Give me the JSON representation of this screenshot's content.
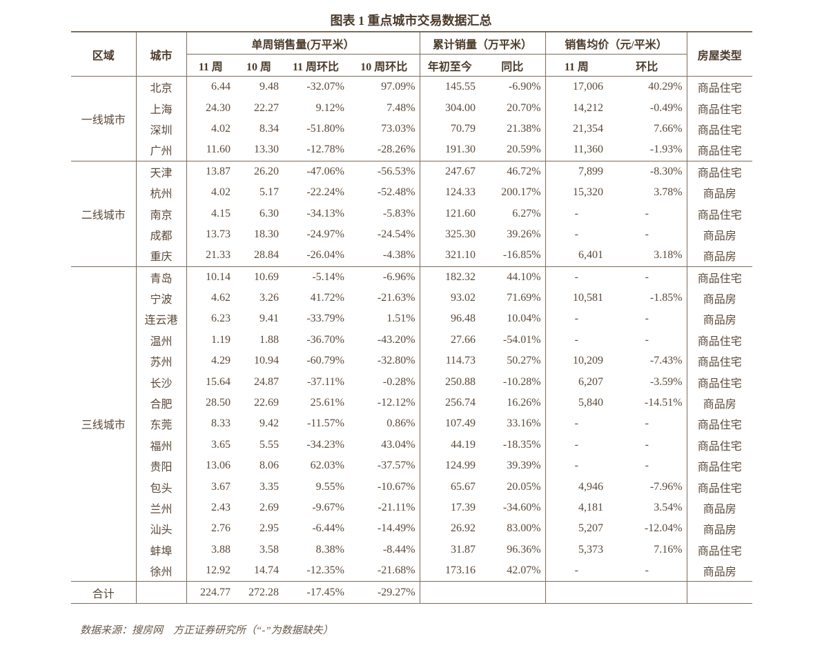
{
  "title": "图表 1 重点城市交易数据汇总",
  "header": {
    "region": "区域",
    "city": "城市",
    "weekly": "单周销售量(万平米）",
    "cumulative": "累计销量（万平米）",
    "price": "销售均价（元/平米）",
    "type": "房屋类型",
    "sub": [
      "11 周",
      "10 周",
      "11 周环比",
      "10 周环比",
      "年初至今",
      "同比",
      "11 周",
      "环比"
    ]
  },
  "groups": [
    {
      "region": "一线城市",
      "rows": [
        [
          "北京",
          "6.44",
          "9.48",
          "-32.07%",
          "97.09%",
          "145.55",
          "-6.90%",
          "17,006",
          "40.29%",
          "商品住宅"
        ],
        [
          "上海",
          "24.30",
          "22.27",
          "9.12%",
          "7.48%",
          "304.00",
          "20.70%",
          "14,212",
          "-0.49%",
          "商品住宅"
        ],
        [
          "深圳",
          "4.02",
          "8.34",
          "-51.80%",
          "73.03%",
          "70.79",
          "21.38%",
          "21,354",
          "7.66%",
          "商品住宅"
        ],
        [
          "广州",
          "11.60",
          "13.30",
          "-12.78%",
          "-28.26%",
          "191.30",
          "20.59%",
          "11,360",
          "-1.93%",
          "商品住宅"
        ]
      ]
    },
    {
      "region": "二线城市",
      "rows": [
        [
          "天津",
          "13.87",
          "26.20",
          "-47.06%",
          "-56.53%",
          "247.67",
          "46.72%",
          "7,899",
          "-8.30%",
          "商品住宅"
        ],
        [
          "杭州",
          "4.02",
          "5.17",
          "-22.24%",
          "-52.48%",
          "124.33",
          "200.17%",
          "15,320",
          "3.78%",
          "商品房"
        ],
        [
          "南京",
          "4.15",
          "6.30",
          "-34.13%",
          "-5.83%",
          "121.60",
          "6.27%",
          "-",
          "-",
          "商品住宅"
        ],
        [
          "成都",
          "13.73",
          "18.30",
          "-24.97%",
          "-24.54%",
          "325.30",
          "39.26%",
          "-",
          "-",
          "商品房"
        ],
        [
          "重庆",
          "21.33",
          "28.84",
          "-26.04%",
          "-4.38%",
          "321.10",
          "-16.85%",
          "6,401",
          "3.18%",
          "商品房"
        ]
      ]
    },
    {
      "region": "三线城市",
      "rows": [
        [
          "青岛",
          "10.14",
          "10.69",
          "-5.14%",
          "-6.96%",
          "182.32",
          "44.10%",
          "-",
          "-",
          "商品住宅"
        ],
        [
          "宁波",
          "4.62",
          "3.26",
          "41.72%",
          "-21.63%",
          "93.02",
          "71.69%",
          "10,581",
          "-1.85%",
          "商品房"
        ],
        [
          "连云港",
          "6.23",
          "9.41",
          "-33.79%",
          "1.51%",
          "96.48",
          "10.04%",
          "-",
          "-",
          "商品房"
        ],
        [
          "温州",
          "1.19",
          "1.88",
          "-36.70%",
          "-43.20%",
          "27.66",
          "-54.01%",
          "-",
          "-",
          "商品住宅"
        ],
        [
          "苏州",
          "4.29",
          "10.94",
          "-60.79%",
          "-32.80%",
          "114.73",
          "50.27%",
          "10,209",
          "-7.43%",
          "商品住宅"
        ],
        [
          "长沙",
          "15.64",
          "24.87",
          "-37.11%",
          "-0.28%",
          "250.88",
          "-10.28%",
          "6,207",
          "-3.59%",
          "商品住宅"
        ],
        [
          "合肥",
          "28.50",
          "22.69",
          "25.61%",
          "-12.12%",
          "256.74",
          "16.26%",
          "5,840",
          "-14.51%",
          "商品房"
        ],
        [
          "东莞",
          "8.33",
          "9.42",
          "-11.57%",
          "0.86%",
          "107.49",
          "33.16%",
          "-",
          "-",
          "商品住宅"
        ],
        [
          "福州",
          "3.65",
          "5.55",
          "-34.23%",
          "43.04%",
          "44.19",
          "-18.35%",
          "-",
          "-",
          "商品住宅"
        ],
        [
          "贵阳",
          "13.06",
          "8.06",
          "62.03%",
          "-37.57%",
          "124.99",
          "39.39%",
          "-",
          "-",
          "商品住宅"
        ],
        [
          "包头",
          "3.67",
          "3.35",
          "9.55%",
          "-10.67%",
          "65.67",
          "20.05%",
          "4,946",
          "-7.96%",
          "商品住宅"
        ],
        [
          "兰州",
          "2.43",
          "2.69",
          "-9.67%",
          "-21.11%",
          "17.39",
          "-34.60%",
          "4,181",
          "3.54%",
          "商品房"
        ],
        [
          "汕头",
          "2.76",
          "2.95",
          "-6.44%",
          "-14.49%",
          "26.92",
          "83.00%",
          "5,207",
          "-12.04%",
          "商品房"
        ],
        [
          "蚌埠",
          "3.88",
          "3.58",
          "8.38%",
          "-8.44%",
          "31.87",
          "96.36%",
          "5,373",
          "7.16%",
          "商品住宅"
        ],
        [
          "徐州",
          "12.92",
          "14.74",
          "-12.35%",
          "-21.68%",
          "173.16",
          "42.07%",
          "-",
          "-",
          "商品房"
        ]
      ]
    }
  ],
  "total": {
    "label": "合计",
    "values": [
      "224.77",
      "272.28",
      "-17.45%",
      "-29.27%"
    ]
  },
  "source": "数据来源：搜房网　方正证券研究所（“-”为数据缺失）"
}
